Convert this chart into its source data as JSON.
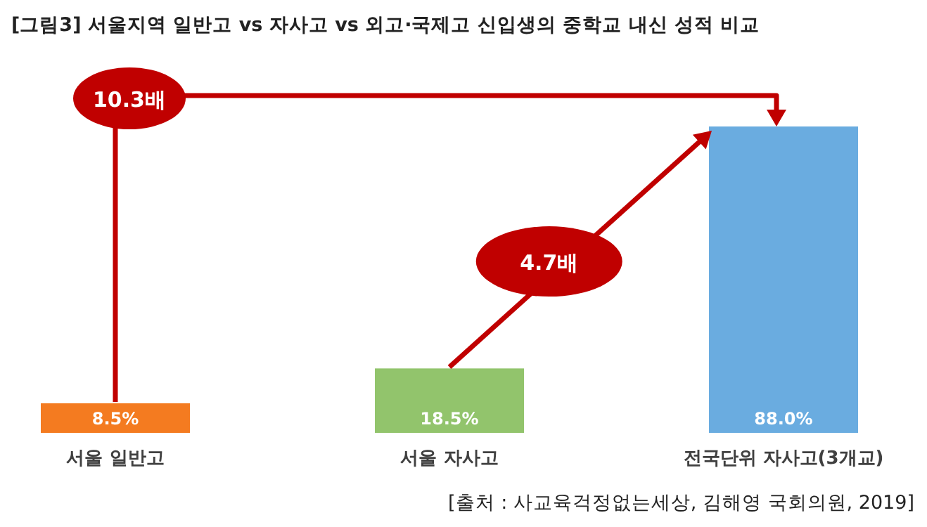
{
  "chart_data": {
    "type": "bar",
    "title": "[그림3] 서울지역 일반고 vs 자사고 vs 외고·국제고 신입생의 중학교 내신 성적 비교",
    "categories": [
      "서울 일반고",
      "서울 자사고",
      "전국단위 자사고(3개교)"
    ],
    "values": [
      8.5,
      18.5,
      88.0
    ],
    "value_labels": [
      "8.5%",
      "18.5%",
      "88.0%"
    ],
    "colors": [
      "#f47b20",
      "#92c46c",
      "#6aace0"
    ],
    "annotations": [
      "10.3배",
      "4.7배",
      "[출처 : 사교육걱정없는세상, 김해영 국회의원, 2019]"
    ]
  }
}
